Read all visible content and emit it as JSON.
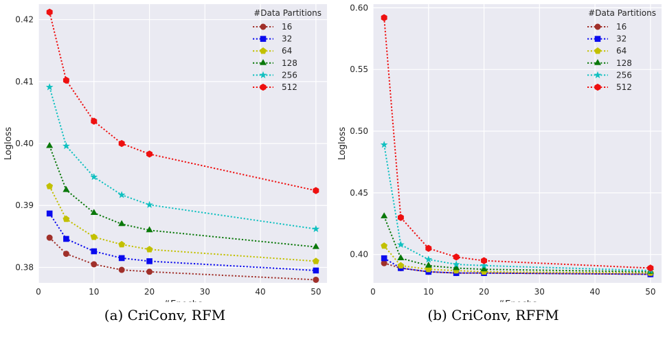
{
  "chart_data": [
    {
      "type": "line",
      "caption": "(a) CriConv, RFM",
      "xlabel": "#Epochs",
      "ylabel": "Logloss",
      "xlim": [
        0,
        52
      ],
      "ylim": [
        0.3775,
        0.4225
      ],
      "xticks": [
        0,
        10,
        20,
        30,
        40,
        50
      ],
      "yticks": [
        0.38,
        0.39,
        0.4,
        0.41,
        0.42
      ],
      "ytick_labels": [
        "0.38",
        "0.39",
        "0.40",
        "0.41",
        "0.42"
      ],
      "legend": {
        "title": "#Data Partitions",
        "placement": "top-right"
      },
      "grid": true,
      "x": [
        2,
        5,
        10,
        15,
        20,
        50
      ],
      "series": [
        {
          "name": "16",
          "color": "#a0302a",
          "marker": "circle",
          "values": [
            0.3848,
            0.3822,
            0.3805,
            0.3796,
            0.3793,
            0.378
          ]
        },
        {
          "name": "32",
          "color": "#0a0aee",
          "marker": "square",
          "values": [
            0.3887,
            0.3846,
            0.3826,
            0.3815,
            0.381,
            0.3795
          ]
        },
        {
          "name": "64",
          "color": "#c2c000",
          "marker": "pentagon",
          "values": [
            0.3931,
            0.3878,
            0.3849,
            0.3837,
            0.3829,
            0.381
          ]
        },
        {
          "name": "128",
          "color": "#0a780a",
          "marker": "triangle",
          "values": [
            0.3996,
            0.3925,
            0.3888,
            0.387,
            0.386,
            0.3833
          ]
        },
        {
          "name": "256",
          "color": "#10c0c0",
          "marker": "star",
          "values": [
            0.4091,
            0.3996,
            0.3946,
            0.3917,
            0.3901,
            0.3862
          ]
        },
        {
          "name": "512",
          "color": "#ee1010",
          "marker": "hexagon",
          "values": [
            0.4212,
            0.4102,
            0.4036,
            0.4,
            0.3983,
            0.3924
          ]
        }
      ]
    },
    {
      "type": "line",
      "caption": "(b) CriConv, RFFM",
      "xlabel": "#Epochs",
      "ylabel": "Logloss",
      "xlim": [
        0,
        52
      ],
      "ylim": [
        0.377,
        0.603
      ],
      "xticks": [
        0,
        10,
        20,
        30,
        40,
        50
      ],
      "yticks": [
        0.4,
        0.45,
        0.5,
        0.55,
        0.6
      ],
      "ytick_labels": [
        "0.40",
        "0.45",
        "0.50",
        "0.55",
        "0.60"
      ],
      "legend": {
        "title": "#Data Partitions",
        "placement": "top-right"
      },
      "grid": true,
      "x": [
        2,
        5,
        10,
        15,
        20,
        50
      ],
      "series": [
        {
          "name": "16",
          "color": "#a0302a",
          "marker": "circle",
          "values": [
            0.393,
            0.389,
            0.386,
            0.385,
            0.385,
            0.384
          ]
        },
        {
          "name": "32",
          "color": "#0a0aee",
          "marker": "square",
          "values": [
            0.397,
            0.389,
            0.386,
            0.385,
            0.385,
            0.384
          ]
        },
        {
          "name": "64",
          "color": "#c2c000",
          "marker": "pentagon",
          "values": [
            0.407,
            0.391,
            0.388,
            0.387,
            0.386,
            0.385
          ]
        },
        {
          "name": "128",
          "color": "#0a780a",
          "marker": "triangle",
          "values": [
            0.431,
            0.397,
            0.391,
            0.389,
            0.388,
            0.386
          ]
        },
        {
          "name": "256",
          "color": "#10c0c0",
          "marker": "star",
          "values": [
            0.489,
            0.408,
            0.396,
            0.392,
            0.391,
            0.387
          ]
        },
        {
          "name": "512",
          "color": "#ee1010",
          "marker": "hexagon",
          "values": [
            0.592,
            0.43,
            0.405,
            0.398,
            0.395,
            0.389
          ]
        }
      ]
    }
  ]
}
